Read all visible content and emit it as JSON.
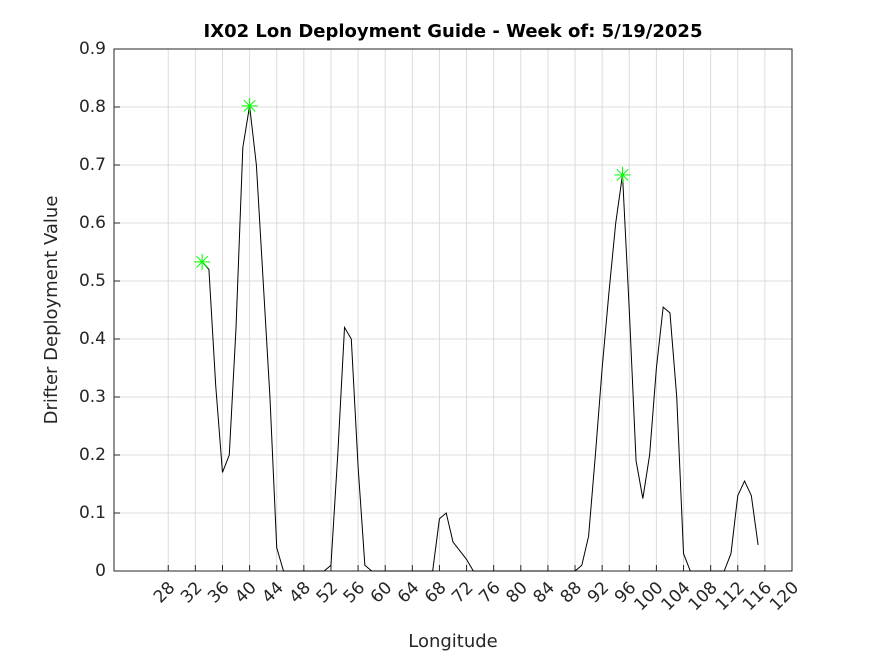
{
  "chart_data": {
    "type": "line",
    "title": "IX02 Lon Deployment Guide - Week of: 5/19/2025",
    "x_label": "Longitude",
    "y_label": "Drifter Deployment Value",
    "x": [
      33,
      34,
      35,
      36,
      37,
      38,
      39,
      40,
      41,
      42,
      43,
      44,
      45,
      46,
      47,
      48,
      49,
      50,
      51,
      52,
      53,
      54,
      55,
      56,
      57,
      58,
      59,
      60,
      61,
      62,
      63,
      64,
      65,
      66,
      67,
      68,
      69,
      70,
      71,
      72,
      73,
      74,
      75,
      76,
      77,
      78,
      79,
      80,
      81,
      82,
      83,
      84,
      85,
      86,
      87,
      88,
      89,
      90,
      91,
      92,
      93,
      94,
      95,
      96,
      97,
      98,
      99,
      100,
      101,
      102,
      103,
      104,
      105,
      106,
      107,
      108,
      109,
      110,
      111,
      112,
      113,
      114,
      115
    ],
    "series": [
      {
        "color": "#000000",
        "values": [
          0.533,
          0.52,
          0.32,
          0.17,
          0.2,
          0.42,
          0.73,
          0.802,
          0.7,
          0.5,
          0.3,
          0.04,
          0,
          0,
          0,
          0,
          0,
          0,
          0,
          0.01,
          0.2,
          0.42,
          0.4,
          0.18,
          0.01,
          0,
          0,
          0,
          0,
          0,
          0,
          0,
          0,
          0,
          0,
          0.09,
          0.1,
          0.05,
          0.035,
          0.02,
          0,
          0,
          0,
          0,
          0,
          0,
          0,
          0,
          0,
          0,
          0,
          0,
          0,
          0,
          0,
          0,
          0.01,
          0.06,
          0.2,
          0.35,
          0.48,
          0.6,
          0.683,
          0.45,
          0.19,
          0.125,
          0.2,
          0.35,
          0.455,
          0.445,
          0.3,
          0.03,
          0,
          0,
          0,
          0,
          0,
          0,
          0.03,
          0.13,
          0.155,
          0.13,
          0.045
        ]
      }
    ],
    "markers": {
      "color": "#00ff00",
      "x": [
        33,
        40,
        95
      ],
      "values": [
        0.533,
        0.802,
        0.683
      ]
    },
    "xlim": [
      20,
      120
    ],
    "xticks": [
      28,
      32,
      36,
      40,
      44,
      48,
      52,
      56,
      60,
      64,
      68,
      72,
      76,
      80,
      84,
      88,
      92,
      96,
      100,
      104,
      108,
      112,
      116,
      120
    ],
    "ylim": [
      0,
      0.9
    ],
    "yticks": [
      0,
      0.1,
      0.2,
      0.3,
      0.4,
      0.5,
      0.6,
      0.7,
      0.8,
      0.9
    ],
    "grid": true
  }
}
